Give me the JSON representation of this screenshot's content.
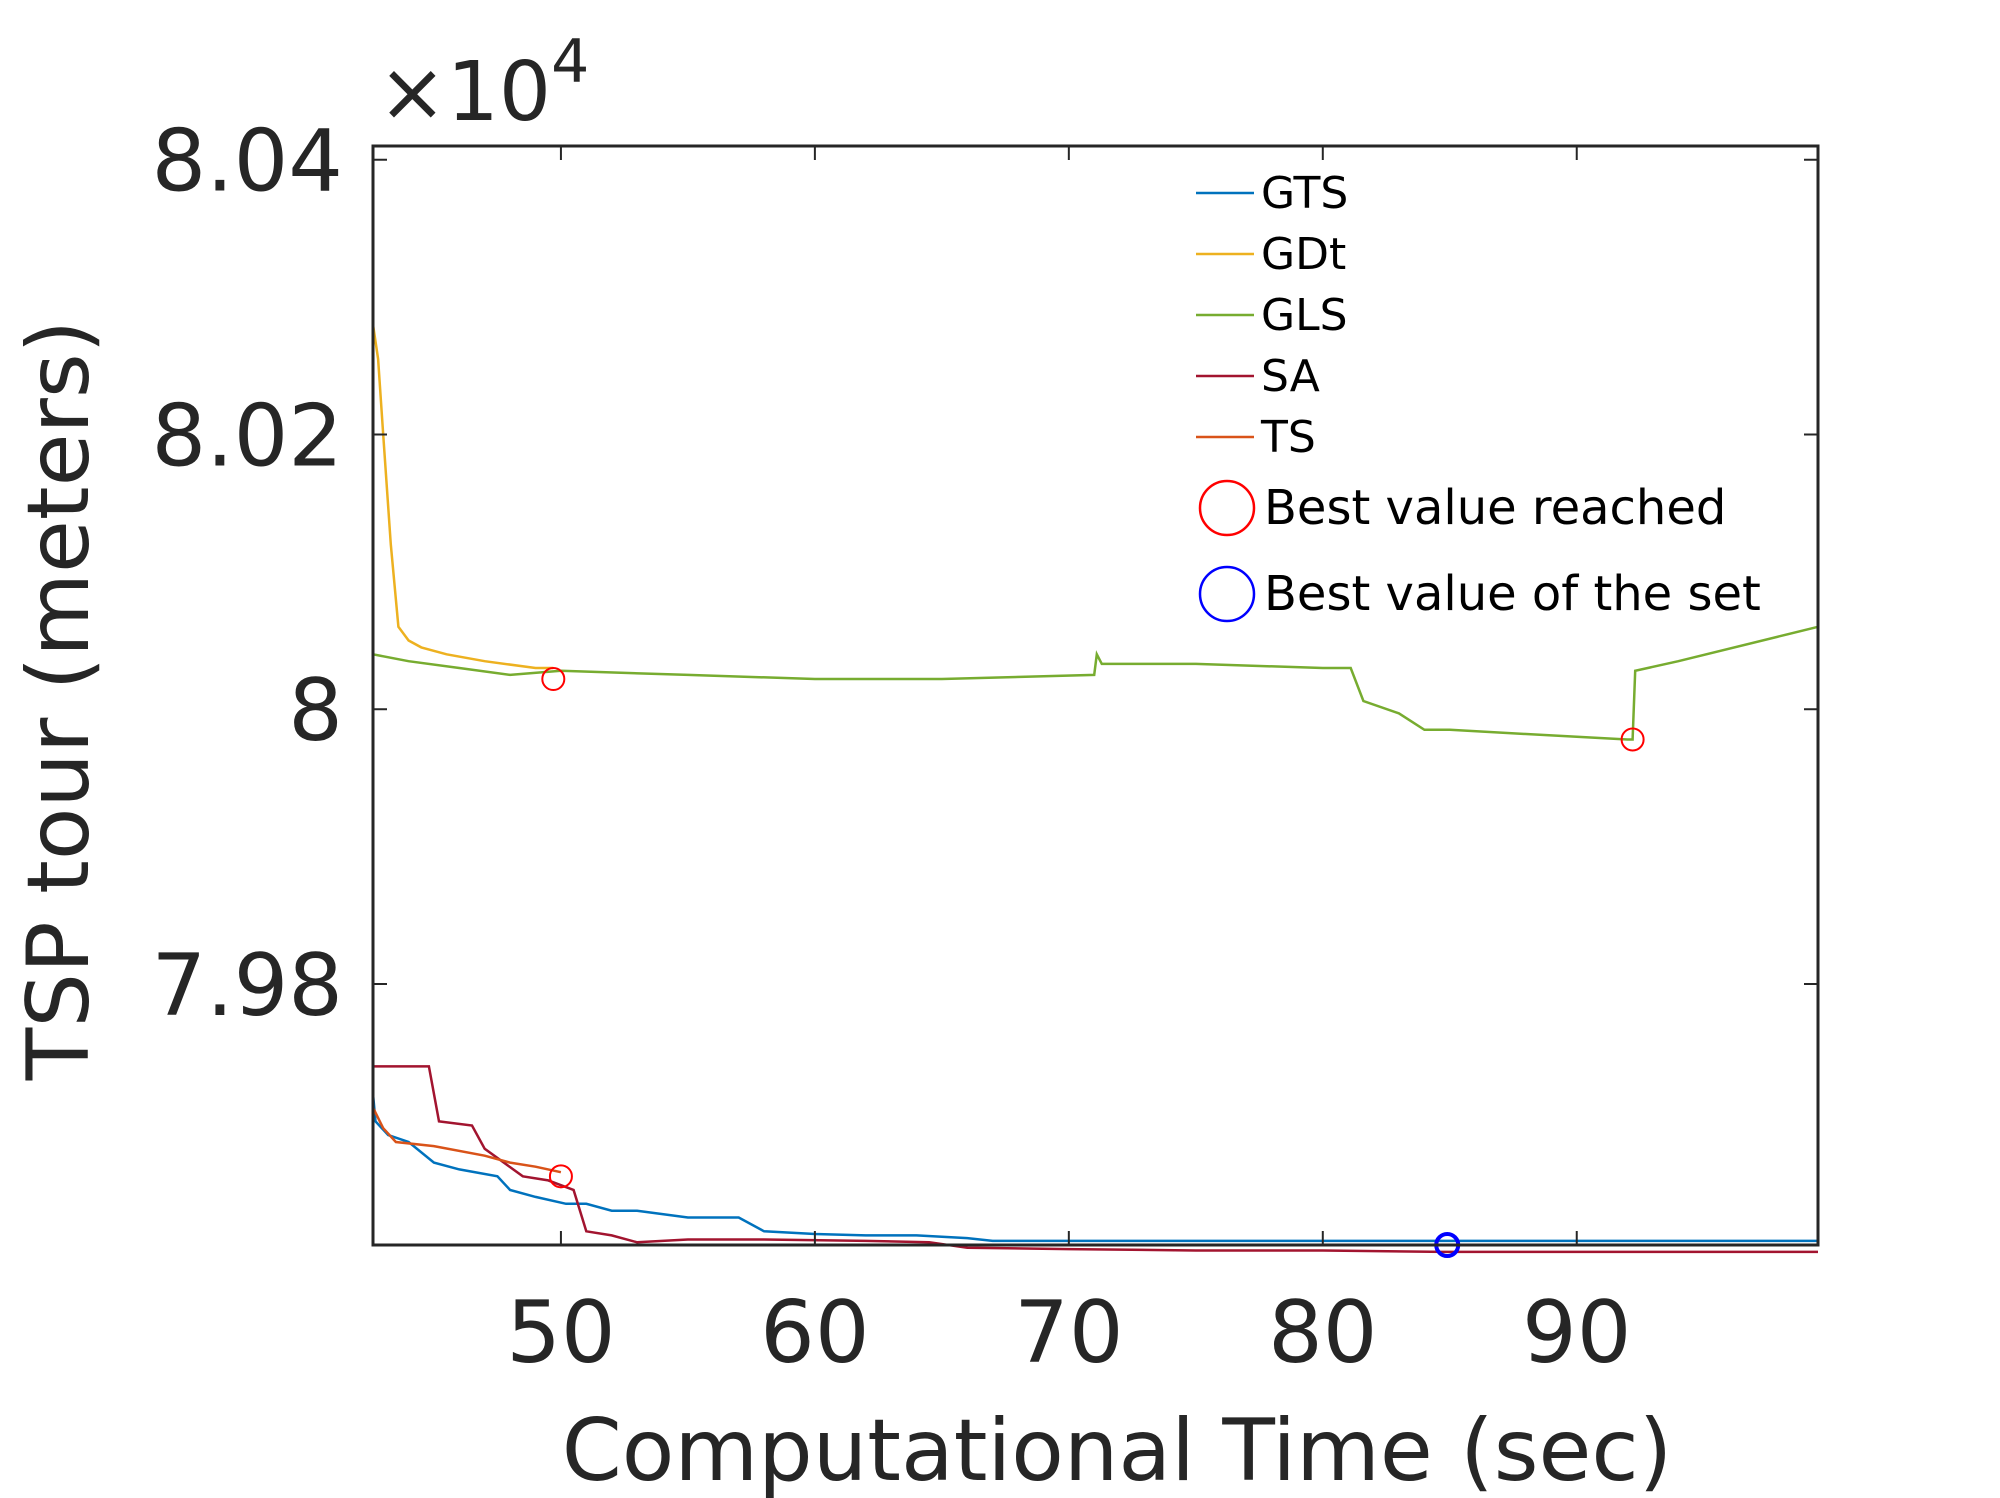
{
  "chart_data": {
    "type": "line",
    "xlabel": "Computational Time (sec)",
    "ylabel": "TSP tour (meters)",
    "y_exponent_label": "×10",
    "y_exponent_power": "4",
    "xlim": [
      42.6,
      99.5
    ],
    "ylim": [
      79610,
      80410
    ],
    "x_ticks": [
      50,
      60,
      70,
      80,
      90
    ],
    "x_tick_labels": [
      "50",
      "60",
      "70",
      "80",
      "90"
    ],
    "y_ticks": [
      79800,
      80000,
      80200,
      80400
    ],
    "y_tick_labels": [
      "7.98",
      "8",
      "8.02",
      "8.04"
    ],
    "series": [
      {
        "name": "GTS",
        "color": "#0072BD",
        "x": [
          42.6,
          42.7,
          43.2,
          44.0,
          45.0,
          46.0,
          47.5,
          48.0,
          49.0,
          50.2,
          51.0,
          52.0,
          53.0,
          55.0,
          57.0,
          58.0,
          60.0,
          62.0,
          64.0,
          66.0,
          67.0,
          70.0,
          75.0,
          80.0,
          85.0,
          90.0,
          99.5
        ],
        "y": [
          79720,
          79700,
          79690,
          79685,
          79670,
          79665,
          79660,
          79650,
          79645,
          79640,
          79640,
          79635,
          79635,
          79630,
          79630,
          79620,
          79618,
          79617,
          79617,
          79615,
          79613,
          79613,
          79613,
          79613,
          79613,
          79613,
          79613
        ]
      },
      {
        "name": "GDt",
        "color": "#EDB120",
        "x": [
          42.6,
          42.8,
          43.0,
          43.3,
          43.6,
          44.0,
          44.5,
          45.5,
          47.0,
          49.0,
          49.7
        ],
        "y": [
          80280,
          80255,
          80200,
          80120,
          80060,
          80050,
          80045,
          80040,
          80035,
          80030,
          80030
        ]
      },
      {
        "name": "GLS",
        "color": "#77AC30",
        "x": [
          42.6,
          44.0,
          46.0,
          48.0,
          50.0,
          55.0,
          60.0,
          65.0,
          71.0,
          71.1,
          71.3,
          75.0,
          80.0,
          81.1,
          81.6,
          83.0,
          84.0,
          85.0,
          88.0,
          90.0,
          92.0,
          92.2,
          92.3,
          94.0,
          99.5
        ],
        "y": [
          80040,
          80035,
          80030,
          80025,
          80028,
          80025,
          80022,
          80022,
          80025,
          80040,
          80033,
          80033,
          80030,
          80030,
          80006,
          79997,
          79985,
          79985,
          79982,
          79980,
          79978,
          79978,
          80028,
          80035,
          80060
        ]
      },
      {
        "name": "SA",
        "color": "#A2142F",
        "x": [
          42.6,
          44.0,
          44.8,
          45.2,
          46.5,
          47.0,
          48.5,
          49.5,
          50.5,
          51.0,
          52.0,
          53.0,
          55.0,
          58.0,
          62.0,
          64.5,
          66.0,
          70.0,
          75.0,
          80.0,
          84.7,
          90.0,
          99.5
        ],
        "y": [
          79740,
          79740,
          79740,
          79700,
          79697,
          79680,
          79660,
          79657,
          79650,
          79620,
          79617,
          79612,
          79614,
          79614,
          79613,
          79612,
          79608,
          79607,
          79606,
          79606,
          79605,
          79605,
          79605
        ]
      },
      {
        "name": "TS",
        "color": "#D95319",
        "x": [
          42.6,
          43.0,
          43.5,
          45.0,
          47.0,
          48.0,
          49.0,
          50.0
        ],
        "y": [
          79710,
          79695,
          79685,
          79682,
          79675,
          79670,
          79667,
          79663
        ]
      }
    ],
    "markers": [
      {
        "type": "best_value_reached",
        "color": "#FF0000",
        "x": 49.7,
        "y": 80022
      },
      {
        "type": "best_value_reached",
        "color": "#FF0000",
        "x": 50.0,
        "y": 79660
      },
      {
        "type": "best_value_reached",
        "color": "#FF0000",
        "x": 92.2,
        "y": 79978
      },
      {
        "type": "best_value_of_set",
        "color": "#0000FF",
        "x": 84.9,
        "y": 79610
      }
    ],
    "legend": {
      "position": "top-right",
      "entries": [
        {
          "label": "GTS",
          "kind": "line",
          "color": "#0072BD"
        },
        {
          "label": "GDt",
          "kind": "line",
          "color": "#EDB120"
        },
        {
          "label": "GLS",
          "kind": "line",
          "color": "#77AC30"
        },
        {
          "label": "SA",
          "kind": "line",
          "color": "#A2142F"
        },
        {
          "label": "TS",
          "kind": "line",
          "color": "#D95319"
        },
        {
          "label": "Best value reached",
          "kind": "circle",
          "color": "#FF0000"
        },
        {
          "label": "Best value of the set",
          "kind": "circle",
          "color": "#0000FF"
        }
      ]
    }
  }
}
